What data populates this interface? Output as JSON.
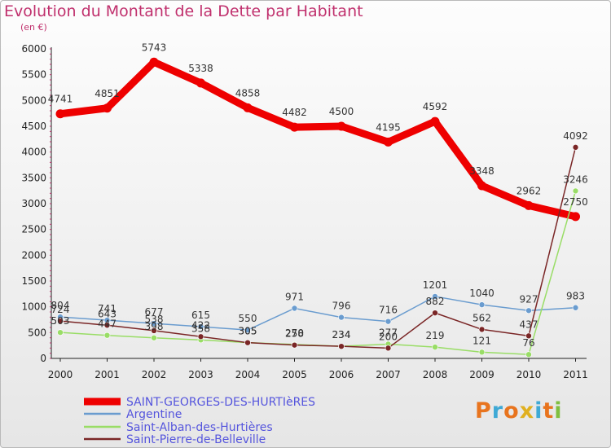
{
  "title": "Evolution du Montant de la Dette par Habitant",
  "subtitle": "(en €)",
  "logo": {
    "text": "Proxiti",
    "colors": [
      "#e8741e",
      "#3fa9d5",
      "#e8741e",
      "#e0b020",
      "#3fa9d5",
      "#e8741e",
      "#7fbf3f"
    ]
  },
  "chart_data": {
    "type": "line",
    "title": "Evolution du Montant de la Dette par Habitant",
    "ylabel": "(en €)",
    "xlabel": "",
    "x": [
      "2000",
      "2001",
      "2002",
      "2003",
      "2004",
      "2005",
      "2006",
      "2007",
      "2008",
      "2009",
      "2010",
      "2011"
    ],
    "ylim": [
      0,
      6000
    ],
    "yticks": [
      0,
      500,
      1000,
      1500,
      2000,
      2500,
      3000,
      3500,
      4000,
      4500,
      5000,
      5500,
      6000
    ],
    "grid": false,
    "legend_position": "bottom-left",
    "series": [
      {
        "name": "SAINT-GEORGES-DES-HURTIèRES",
        "color": "#ee0000",
        "values": [
          4741,
          4851,
          5743,
          5338,
          4858,
          4482,
          4500,
          4195,
          4592,
          3348,
          2962,
          2750
        ]
      },
      {
        "name": "Argentine",
        "color": "#6a9ccf",
        "values": [
          804,
          741,
          677,
          615,
          550,
          971,
          796,
          716,
          1201,
          1040,
          927,
          983
        ]
      },
      {
        "name": "Saint-Alban-des-Hurtières",
        "color": "#99dd66",
        "values": [
          503,
          447,
          398,
          358,
          305,
          270,
          234,
          277,
          219,
          121,
          76,
          3246
        ]
      },
      {
        "name": "Saint-Pierre-de-Belleville",
        "color": "#7a2626",
        "values": [
          724,
          643,
          538,
          422,
          305,
          258,
          234,
          200,
          882,
          562,
          437,
          4092
        ]
      }
    ]
  }
}
